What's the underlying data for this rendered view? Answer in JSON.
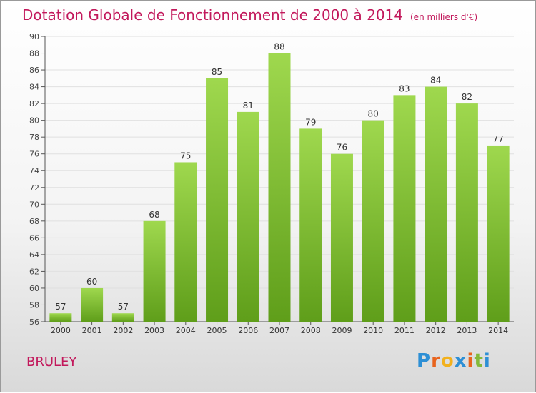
{
  "header": {
    "title": "Dotation Globale de Fonctionnement de 2000 à 2014",
    "unit": "(en milliers d'€)"
  },
  "footer": {
    "place": "BRULEY",
    "logo": "Proxiti"
  },
  "colors": {
    "title": "#c2185b",
    "bar_top": "#9fd84e",
    "bar_bottom": "#5f9e1a",
    "grid": "#e0e0e0",
    "logo": [
      "#2d8fd5",
      "#e8641e",
      "#f2b11d",
      "#2d8fd5",
      "#e8641e",
      "#84b93a",
      "#2d8fd5"
    ]
  },
  "chart_data": {
    "type": "bar",
    "title": "Dotation Globale de Fonctionnement de 2000 à 2014",
    "categories": [
      "2000",
      "2001",
      "2002",
      "2003",
      "2004",
      "2005",
      "2006",
      "2007",
      "2008",
      "2009",
      "2010",
      "2011",
      "2012",
      "2013",
      "2014"
    ],
    "values": [
      57,
      60,
      57,
      68,
      75,
      85,
      81,
      88,
      79,
      76,
      80,
      83,
      84,
      82,
      77
    ],
    "ylim": [
      56,
      90
    ],
    "yticks": [
      56,
      58,
      60,
      62,
      64,
      66,
      68,
      70,
      72,
      74,
      76,
      78,
      80,
      82,
      84,
      86,
      88,
      90
    ],
    "grid": true,
    "data_labels": true,
    "xlabel": "",
    "ylabel": ""
  }
}
